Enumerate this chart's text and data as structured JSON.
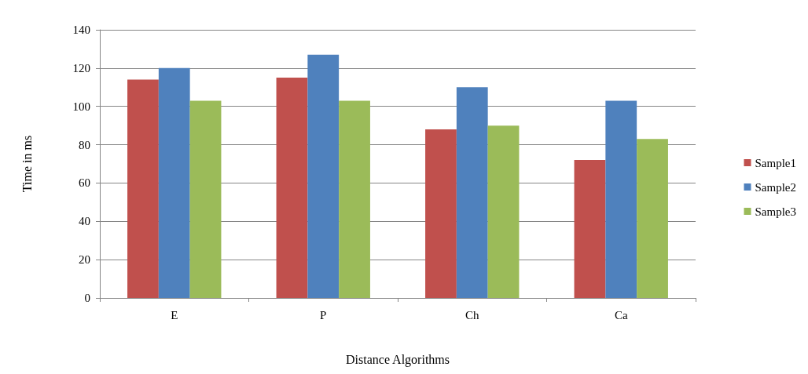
{
  "chart_data": {
    "type": "bar",
    "xlabel": "Distance Algorithms",
    "ylabel": "Time in ms",
    "categories": [
      "E",
      "P",
      "Ch",
      "Ca"
    ],
    "series": [
      {
        "name": "Sample1",
        "color": "#c0504d",
        "values": [
          114,
          115,
          88,
          72
        ]
      },
      {
        "name": "Sample2",
        "color": "#4f81bd",
        "values": [
          120,
          127,
          110,
          103
        ]
      },
      {
        "name": "Sample3",
        "color": "#9bbb59",
        "values": [
          103,
          103,
          90,
          83
        ]
      }
    ],
    "ylim": [
      0,
      140
    ],
    "yticks": [
      0,
      20,
      40,
      60,
      80,
      100,
      120,
      140
    ],
    "grid": "y",
    "legend": "right"
  }
}
